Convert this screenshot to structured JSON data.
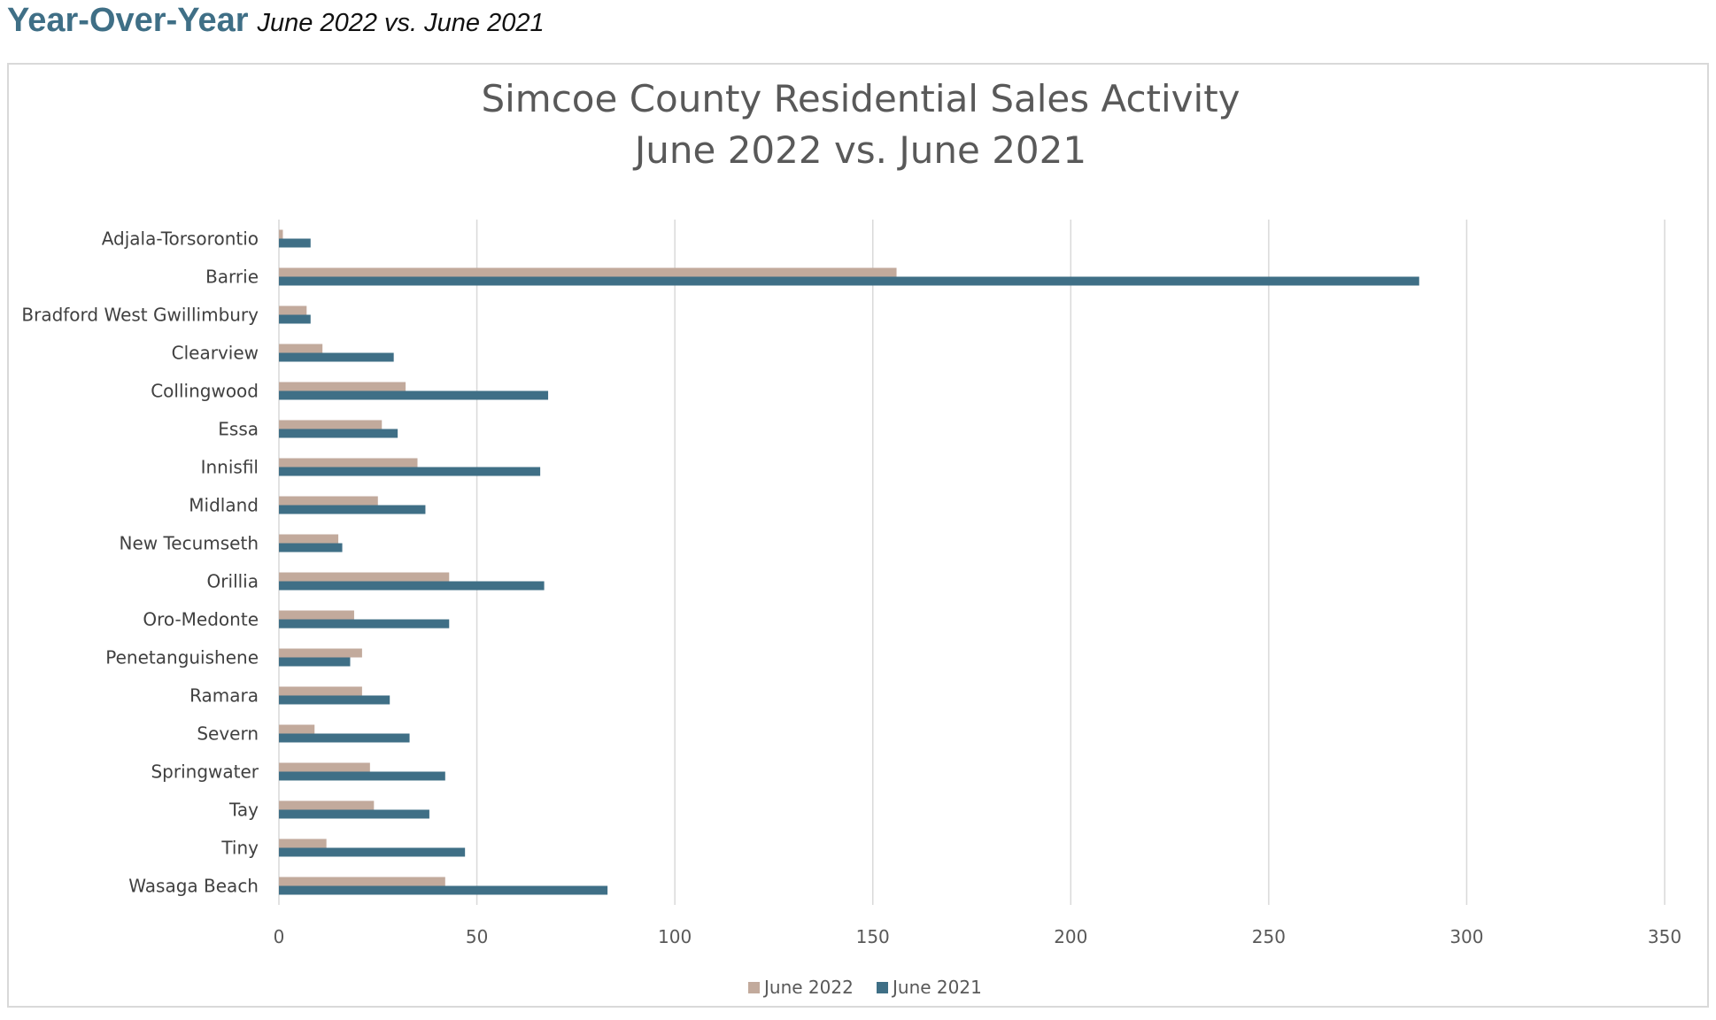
{
  "page_header": {
    "title": "Year-Over-Year",
    "subtitle": "June 2022 vs. June 2021"
  },
  "colors": {
    "june_2022": "#c2aa9c",
    "june_2021": "#3f6f86",
    "header_accent": "#3f6f86",
    "gridline": "#d9d9d9",
    "text": "#595959"
  },
  "chart_data": {
    "type": "bar",
    "orientation": "horizontal",
    "title_line1": "Simcoe County Residential Sales Activity",
    "title_line2": "June 2022 vs. June 2021",
    "xlabel": "",
    "ylabel": "",
    "xlim": [
      0,
      350
    ],
    "x_ticks": [
      0,
      50,
      100,
      150,
      200,
      250,
      300,
      350
    ],
    "grid": true,
    "legend_position": "bottom",
    "categories": [
      "Adjala-Torsorontio",
      "Barrie",
      "Bradford West Gwillimbury",
      "Clearview",
      "Collingwood",
      "Essa",
      "Innisfil",
      "Midland",
      "New Tecumseth",
      "Orillia",
      "Oro-Medonte",
      "Penetanguishene",
      "Ramara",
      "Severn",
      "Springwater",
      "Tay",
      "Tiny",
      "Wasaga Beach"
    ],
    "series": [
      {
        "name": "June 2022",
        "color": "#c2aa9c",
        "values": [
          1,
          156,
          7,
          11,
          32,
          26,
          35,
          25,
          15,
          43,
          19,
          21,
          21,
          9,
          23,
          24,
          12,
          42
        ]
      },
      {
        "name": "June 2021",
        "color": "#3f6f86",
        "values": [
          8,
          288,
          8,
          29,
          68,
          30,
          66,
          37,
          16,
          67,
          43,
          18,
          28,
          33,
          42,
          38,
          47,
          83
        ]
      }
    ]
  }
}
